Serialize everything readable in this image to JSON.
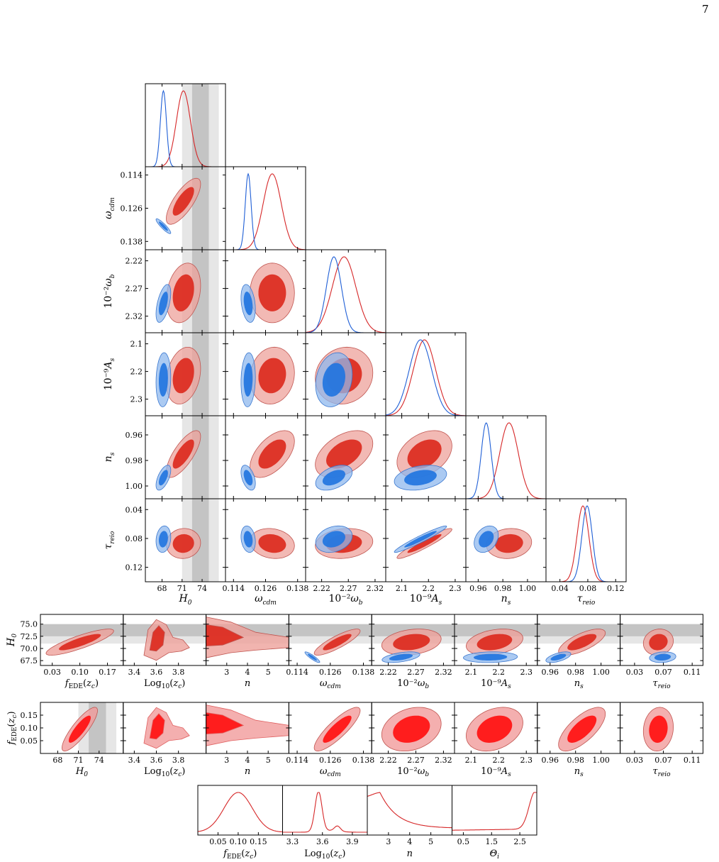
{
  "page_number": "7",
  "colors": {
    "blue_line": "#1f5fd6",
    "blue_fill_outer": "#8fb8ee",
    "blue_fill_inner": "#2275e0",
    "red_line": "#d62728",
    "red_fill_outer": "#eea19b",
    "red_fill_inner": "#dc2a1e",
    "bright_red_outer": "#f19b9b",
    "bright_red_inner": "#ff1010",
    "band_light": "#e6e6e6",
    "band_dark": "#c4c4c4"
  },
  "chart_data": {
    "type": "triangle-corner-plot",
    "parameters": [
      {
        "key": "H0",
        "label": "H0",
        "range": [
          65.5,
          77.5
        ],
        "ticks": [
          68,
          71,
          74
        ],
        "tick_labels": [
          "68",
          "71",
          "74"
        ]
      },
      {
        "key": "wcdm",
        "label": "ωcdm",
        "range": [
          0.111,
          0.141
        ],
        "ticks": [
          0.114,
          0.126,
          0.138
        ],
        "tick_labels": [
          "0.114",
          "0.126",
          "0.138"
        ]
      },
      {
        "key": "wb",
        "label": "10−2ωb",
        "range": [
          2.19,
          2.34
        ],
        "ticks": [
          2.22,
          2.27,
          2.32
        ],
        "tick_labels": [
          "2.22",
          "2.27",
          "2.32"
        ]
      },
      {
        "key": "As",
        "label": "10−9As",
        "range": [
          2.04,
          2.34
        ],
        "ticks": [
          2.1,
          2.2,
          2.3
        ],
        "tick_labels": [
          "2.1",
          "2.2",
          "2.3"
        ]
      },
      {
        "key": "ns",
        "label": "ns",
        "range": [
          0.95,
          1.015
        ],
        "ticks": [
          0.96,
          0.98,
          1.0
        ],
        "tick_labels": [
          "0.96",
          "0.98",
          "1.00"
        ]
      },
      {
        "key": "tau",
        "label": "τreio",
        "range": [
          0.02,
          0.135
        ],
        "ticks": [
          0.04,
          0.08,
          0.12
        ],
        "tick_labels": [
          "0.04",
          "0.08",
          "0.12"
        ]
      }
    ],
    "y_tick_labels": {
      "wcdm": [
        "0.138",
        "0.126",
        "0.114"
      ],
      "wb": [
        "2.32",
        "2.27",
        "2.22"
      ],
      "As": [
        "2.3",
        "2.2",
        "2.1"
      ],
      "ns": [
        "1.00",
        "0.98",
        "0.96"
      ],
      "tau": [
        "0.12",
        "0.08",
        "0.04"
      ]
    },
    "h0_bands": {
      "sigma2": [
        71.0,
        76.5
      ],
      "sigma1": [
        72.5,
        75.0
      ]
    },
    "series": [
      {
        "model": "blue",
        "mean": {
          "H0": 68.2,
          "wcdm": 0.1195,
          "wb": 2.243,
          "As": 2.17,
          "ns": 0.9665,
          "tau": 0.079
        },
        "sigma": {
          "H0": 0.45,
          "wcdm": 0.0011,
          "wb": 0.014,
          "As": 0.04,
          "ns": 0.004,
          "tau": 0.0075
        }
      },
      {
        "model": "red",
        "mean": {
          "H0": 71.2,
          "wcdm": 0.1285,
          "wb": 2.262,
          "As": 2.185,
          "ns": 0.985,
          "tau": 0.073
        },
        "sigma": {
          "H0": 1.05,
          "wcdm": 0.0034,
          "wb": 0.022,
          "As": 0.042,
          "ns": 0.0075,
          "tau": 0.0085
        }
      }
    ],
    "row_H0": {
      "y_label": "H0",
      "y_range": [
        66.5,
        77.0
      ],
      "y_ticks": [
        67.5,
        70.0,
        72.5,
        75.0
      ],
      "y_tick_labels": [
        "67.5",
        "70.0",
        "72.5",
        "75.0"
      ],
      "bands": {
        "sigma2": [
          71.0,
          75.0
        ],
        "sigma1": [
          72.5,
          75.0
        ]
      }
    },
    "row_fEDE": {
      "y_label": "fEDE(zc)",
      "y_range": [
        0.0,
        0.2
      ],
      "y_ticks": [
        0.05,
        0.1,
        0.15
      ],
      "y_tick_labels": [
        "0.05",
        "0.10",
        "0.15"
      ]
    },
    "extra_params": [
      {
        "key": "fEDE",
        "label": "fEDE(zc)",
        "range": [
          0.0,
          0.21
        ],
        "ticks": [
          0.03,
          0.1,
          0.17
        ],
        "tick_labels": [
          "0.03",
          "0.10",
          "0.17"
        ]
      },
      {
        "key": "logzc",
        "label": "Log10(zc)",
        "range": [
          3.3,
          4.05
        ],
        "ticks": [
          3.4,
          3.6,
          3.8
        ],
        "tick_labels": [
          "3.4",
          "3.6",
          "3.8"
        ]
      },
      {
        "key": "n",
        "label": "n",
        "range": [
          2.0,
          6.0
        ],
        "ticks": [
          3,
          4,
          5
        ],
        "tick_labels": [
          "3",
          "4",
          "5"
        ]
      }
    ],
    "row_H0_panels": [
      "fEDE",
      "logzc",
      "n",
      "wcdm",
      "wb",
      "As",
      "ns",
      "tau"
    ],
    "row_H0_tick_labels": {
      "wcdm": [
        "0.114",
        "0.126",
        "0.138"
      ],
      "wb": [
        "2.22",
        "2.27",
        "2.32"
      ],
      "As": [
        "2.1",
        "2.2",
        "2.3"
      ],
      "ns": [
        "0.96",
        "0.98",
        "1.00"
      ],
      "tau": [
        "0.03",
        "0.07",
        "0.11"
      ]
    },
    "row_fEDE_panels": [
      "H0",
      "logzc",
      "n",
      "wcdm",
      "wb",
      "As",
      "ns",
      "tau"
    ],
    "row_fEDE_tick_labels": {
      "H0": [
        "68",
        "71",
        "74"
      ],
      "tau": [
        "0.03",
        "0.07",
        "0.11"
      ]
    },
    "bottom_1d": [
      {
        "label": "fEDE(zc)",
        "tick_labels": [
          "0.05",
          "0.10",
          "0.15"
        ],
        "ticks": [
          0.05,
          0.1,
          0.15
        ],
        "range": [
          0.0,
          0.21
        ],
        "shape": "gauss",
        "peak": 0.1,
        "width": 0.035
      },
      {
        "label": "Log10(zc)",
        "tick_labels": [
          "3.3",
          "3.6",
          "3.9"
        ],
        "ticks": [
          3.3,
          3.6,
          3.9
        ],
        "range": [
          3.2,
          4.05
        ],
        "shape": "logzc"
      },
      {
        "label": "n",
        "tick_labels": [
          "3",
          "4",
          "5"
        ],
        "ticks": [
          3,
          4,
          5
        ],
        "range": [
          2.0,
          6.0
        ],
        "shape": "n"
      },
      {
        "label": "Θi",
        "tick_labels": [
          "0.5",
          "1.5",
          "2.5"
        ],
        "ticks": [
          0.5,
          1.5,
          2.5
        ],
        "range": [
          0.1,
          3.1
        ],
        "shape": "theta"
      }
    ]
  }
}
